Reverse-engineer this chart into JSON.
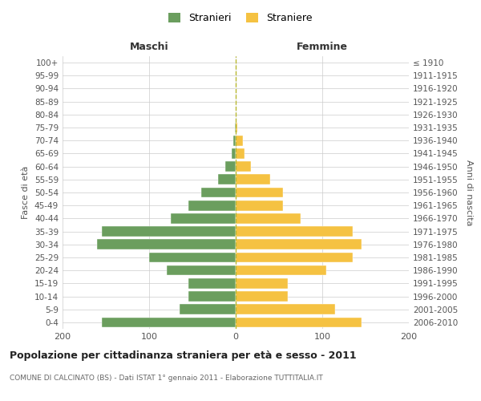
{
  "age_groups": [
    "0-4",
    "5-9",
    "10-14",
    "15-19",
    "20-24",
    "25-29",
    "30-34",
    "35-39",
    "40-44",
    "45-49",
    "50-54",
    "55-59",
    "60-64",
    "65-69",
    "70-74",
    "75-79",
    "80-84",
    "85-89",
    "90-94",
    "95-99",
    "100+"
  ],
  "birth_years": [
    "2006-2010",
    "2001-2005",
    "1996-2000",
    "1991-1995",
    "1986-1990",
    "1981-1985",
    "1976-1980",
    "1971-1975",
    "1966-1970",
    "1961-1965",
    "1956-1960",
    "1951-1955",
    "1946-1950",
    "1941-1945",
    "1936-1940",
    "1931-1935",
    "1926-1930",
    "1921-1925",
    "1916-1920",
    "1911-1915",
    "≤ 1910"
  ],
  "males": [
    155,
    65,
    55,
    55,
    80,
    100,
    160,
    155,
    75,
    55,
    40,
    20,
    12,
    5,
    3,
    1,
    0,
    0,
    0,
    0,
    0
  ],
  "females": [
    145,
    115,
    60,
    60,
    105,
    135,
    145,
    135,
    75,
    55,
    55,
    40,
    18,
    10,
    8,
    2,
    0,
    0,
    0,
    0,
    0
  ],
  "male_color": "#6b9e5e",
  "female_color": "#f5c242",
  "background_color": "#ffffff",
  "grid_color": "#cccccc",
  "xlim": 200,
  "title": "Popolazione per cittadinanza straniera per età e sesso - 2011",
  "subtitle": "COMUNE DI CALCINATO (BS) - Dati ISTAT 1° gennaio 2011 - Elaborazione TUTTITALIA.IT",
  "xlabel_left": "Maschi",
  "xlabel_right": "Femmine",
  "ylabel_left": "Fasce di età",
  "ylabel_right": "Anni di nascita",
  "legend_male": "Stranieri",
  "legend_female": "Straniere"
}
